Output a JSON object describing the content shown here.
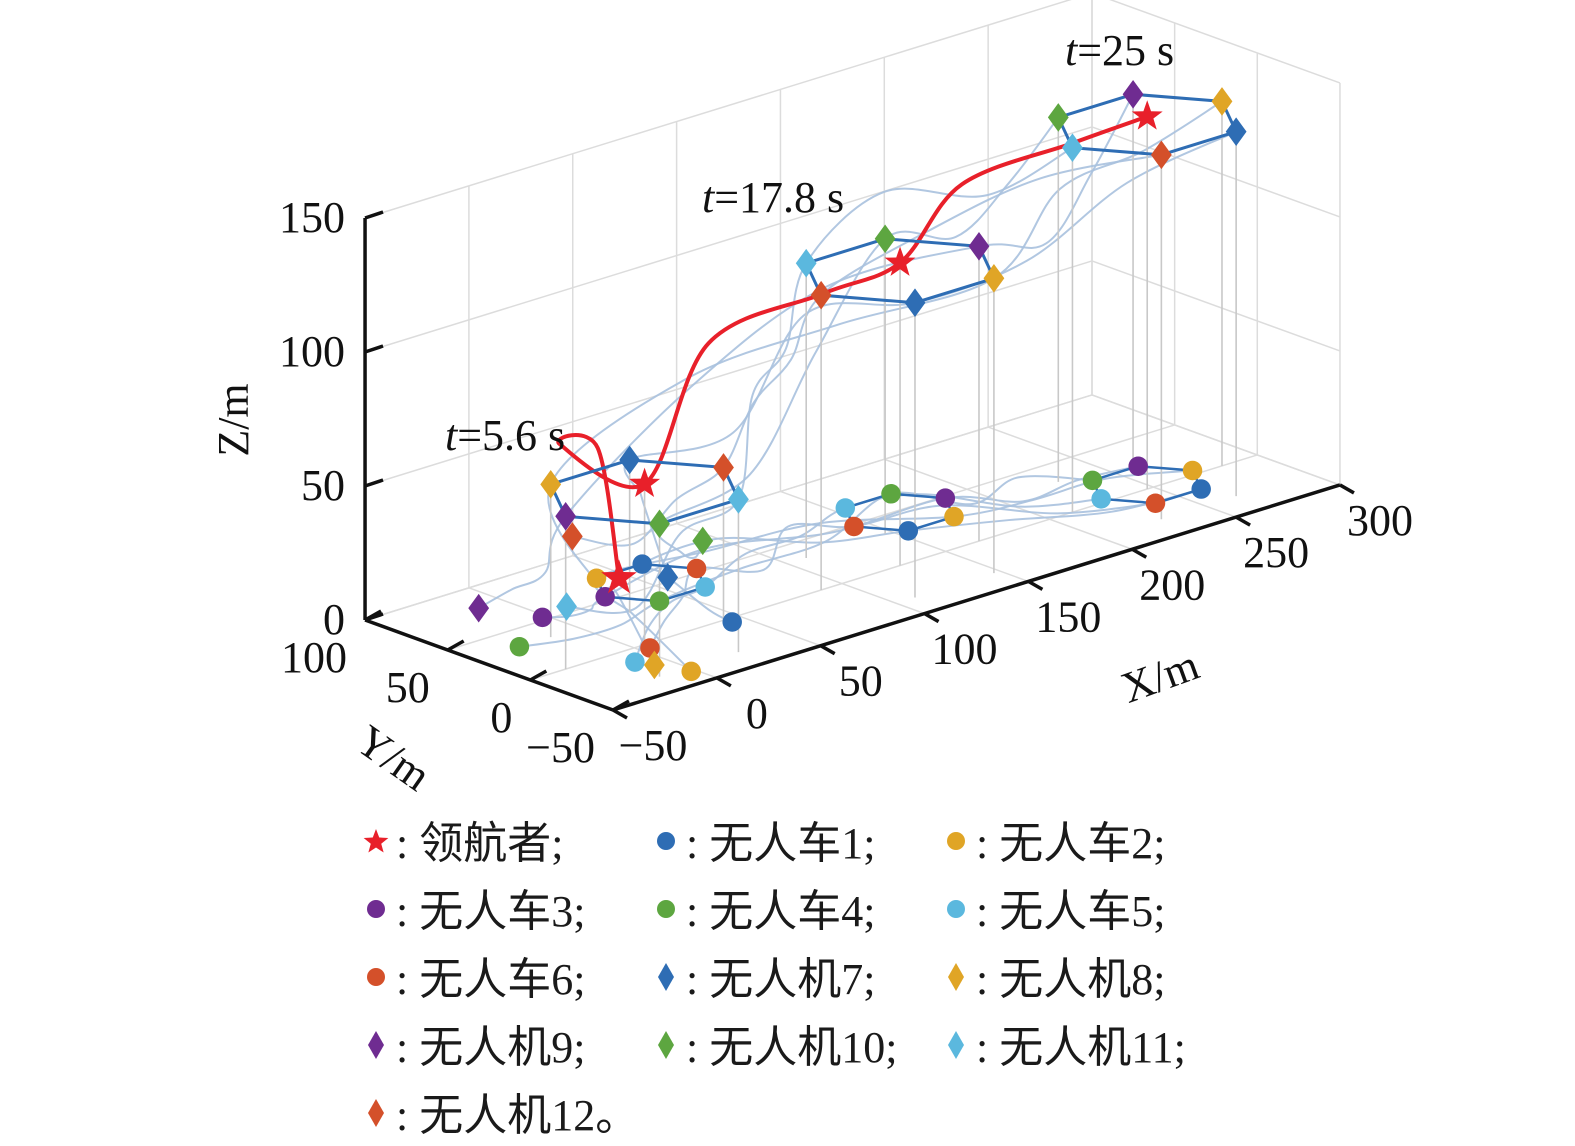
{
  "chart_data": {
    "type": "scatter3d-trajectory",
    "axes": {
      "x": {
        "label": "X/m",
        "range": [
          -50,
          300
        ],
        "ticks": [
          -50,
          0,
          50,
          100,
          150,
          200,
          250,
          300
        ]
      },
      "y": {
        "label": "Y/m",
        "range": [
          -50,
          100
        ],
        "ticks": [
          -50,
          0,
          50,
          100
        ]
      },
      "z": {
        "label": "Z/m",
        "range": [
          0,
          150
        ],
        "ticks": [
          0,
          50,
          100,
          150
        ]
      },
      "grid": true
    },
    "colors": {
      "leader": "#e8202a",
      "formation_edge": "#2e6db4",
      "trajectory": "#a9c1de",
      "leader_path": "#e8202a",
      "agents": [
        "#2e6db4",
        "#e0a526",
        "#6f2c91",
        "#5da640",
        "#5bb8de",
        "#d4502a"
      ]
    },
    "annotations": [
      {
        "text": "t=5.6 s",
        "italic": "t",
        "rest": "=5.6 s"
      },
      {
        "text": "t=17.8 s",
        "italic": "t",
        "rest": "=17.8 s"
      },
      {
        "text": "t=25 s",
        "italic": "t",
        "rest": "=25 s"
      }
    ],
    "leader_start": [
      46,
      67,
      0
    ],
    "snapshots": [
      {
        "t": 5.6,
        "leader": [
          5,
          0,
          60
        ],
        "uav_radius": 38,
        "ugv_center": [
          51,
          54,
          0
        ],
        "ugv_radius": 22,
        "rotation_deg": 120
      },
      {
        "t": 17.8,
        "leader": [
          128,
          0,
          113
        ],
        "uav_radius": 38,
        "ugv_center": [
          166,
          48,
          0
        ],
        "ugv_radius": 22,
        "rotation_deg": -60
      },
      {
        "t": 25,
        "leader": [
          247,
          0,
          139
        ],
        "uav_radius": 36,
        "ugv_center": [
          250,
          4,
          0
        ],
        "ugv_radius": 22,
        "rotation_deg": 0
      }
    ],
    "agents": [
      {
        "id": 1,
        "type": "ugv",
        "color_index": 0,
        "slot_deg": 300,
        "start": [
          44,
          -4,
          0
        ]
      },
      {
        "id": 2,
        "type": "ugv",
        "color_index": 1,
        "slot_deg": 0,
        "start": [
          -2,
          -37,
          0
        ]
      },
      {
        "id": 3,
        "type": "ugv",
        "color_index": 2,
        "slot_deg": 60,
        "start": [
          -2,
          53,
          0
        ]
      },
      {
        "id": 4,
        "type": "ugv",
        "color_index": 3,
        "slot_deg": 120,
        "start": [
          -29,
          33,
          0
        ]
      },
      {
        "id": 5,
        "type": "ugv",
        "color_index": 4,
        "slot_deg": 180,
        "start": [
          -10,
          -13,
          0
        ]
      },
      {
        "id": 6,
        "type": "ugv",
        "color_index": 5,
        "slot_deg": 240,
        "start": [
          4,
          -4.5,
          0
        ]
      },
      {
        "id": 7,
        "type": "uav",
        "color_index": 0,
        "slot_deg": 300,
        "start": [
          40,
          30,
          10
        ]
      },
      {
        "id": 8,
        "type": "uav",
        "color_index": 1,
        "slot_deg": 0,
        "start": [
          -7,
          -21,
          0
        ]
      },
      {
        "id": 9,
        "type": "uav",
        "color_index": 2,
        "slot_deg": 60,
        "start": [
          -12,
          79,
          0
        ]
      },
      {
        "id": 10,
        "type": "uav",
        "color_index": 3,
        "slot_deg": 120,
        "start": [
          33,
          0,
          32
        ]
      },
      {
        "id": 11,
        "type": "uav",
        "color_index": 4,
        "slot_deg": 180,
        "start": [
          12,
          56,
          0
        ]
      },
      {
        "id": 12,
        "type": "uav",
        "color_index": 5,
        "slot_deg": 240,
        "start": [
          10,
          50,
          28
        ]
      }
    ],
    "legend": [
      {
        "marker": "star",
        "color": "#e8202a",
        "label": ": 领航者;"
      },
      {
        "marker": "circle",
        "color": "#2e6db4",
        "label": ": 无人车1;"
      },
      {
        "marker": "circle",
        "color": "#e0a526",
        "label": ": 无人车2;"
      },
      {
        "marker": "circle",
        "color": "#6f2c91",
        "label": ": 无人车3;"
      },
      {
        "marker": "circle",
        "color": "#5da640",
        "label": ": 无人车4;"
      },
      {
        "marker": "circle",
        "color": "#5bb8de",
        "label": ": 无人车5;"
      },
      {
        "marker": "circle",
        "color": "#d4502a",
        "label": ": 无人车6;"
      },
      {
        "marker": "diamond",
        "color": "#2e6db4",
        "label": ": 无人机7;"
      },
      {
        "marker": "diamond",
        "color": "#e0a526",
        "label": ": 无人机8;"
      },
      {
        "marker": "diamond",
        "color": "#6f2c91",
        "label": ": 无人机9;"
      },
      {
        "marker": "diamond",
        "color": "#5da640",
        "label": ": 无人机10;"
      },
      {
        "marker": "diamond",
        "color": "#5bb8de",
        "label": ": 无人机11;"
      },
      {
        "marker": "diamond",
        "color": "#d4502a",
        "label": ": 无人机12。"
      }
    ]
  }
}
